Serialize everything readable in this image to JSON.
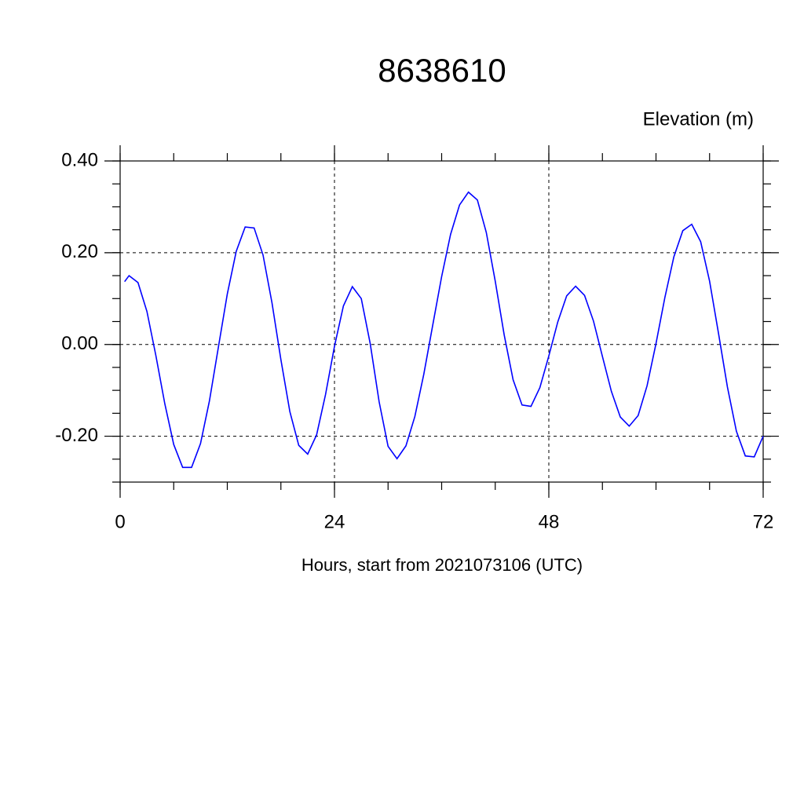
{
  "chart_data": {
    "type": "line",
    "title": "8638610",
    "y_label": "Elevation (m)",
    "x_label": "Hours, start from 2021073106 (UTC)",
    "grid": true,
    "xlim": [
      0,
      72
    ],
    "xticks": [
      0,
      24,
      48,
      72
    ],
    "ylim": [
      -0.3,
      0.4
    ],
    "yticks": [
      {
        "value": 0.4,
        "label": "0.40"
      },
      {
        "value": 0.2,
        "label": "0.20"
      },
      {
        "value": 0,
        "label": "0.00"
      },
      {
        "value": -0.2,
        "label": "-0.20"
      }
    ],
    "x": [
      0.5,
      1,
      2,
      3,
      4,
      5,
      6,
      7,
      8,
      9,
      10,
      11,
      12,
      13,
      14,
      15,
      16,
      17,
      18,
      19,
      20,
      21,
      22,
      23,
      24,
      25,
      26,
      27,
      28,
      29,
      30,
      31,
      32,
      33,
      34,
      35,
      36,
      37,
      38,
      39,
      40,
      41,
      42,
      43,
      44,
      45,
      46,
      47,
      48,
      49,
      50,
      51,
      52,
      53,
      54,
      55,
      56,
      57,
      58,
      59,
      60,
      61,
      62,
      63,
      64,
      65,
      66,
      67,
      68,
      69,
      70,
      71,
      72
    ],
    "series": [
      {
        "name": "Elevation",
        "color": "#0000ff",
        "values": [
          0.137,
          0.15,
          0.135,
          0.072,
          -0.024,
          -0.129,
          -0.218,
          -0.268,
          -0.268,
          -0.216,
          -0.123,
          -0.006,
          0.11,
          0.203,
          0.256,
          0.254,
          0.195,
          0.091,
          -0.033,
          -0.146,
          -0.22,
          -0.239,
          -0.197,
          -0.109,
          -0.004,
          0.084,
          0.126,
          0.1,
          0.002,
          -0.125,
          -0.222,
          -0.249,
          -0.221,
          -0.157,
          -0.065,
          0.042,
          0.148,
          0.24,
          0.304,
          0.332,
          0.315,
          0.244,
          0.138,
          0.021,
          -0.077,
          -0.132,
          -0.135,
          -0.094,
          -0.025,
          0.049,
          0.106,
          0.127,
          0.107,
          0.051,
          -0.026,
          -0.102,
          -0.158,
          -0.178,
          -0.155,
          -0.09,
          0.002,
          0.103,
          0.191,
          0.248,
          0.262,
          0.224,
          0.138,
          0.024,
          -0.093,
          -0.189,
          -0.243,
          -0.245,
          -0.2
        ]
      }
    ]
  }
}
